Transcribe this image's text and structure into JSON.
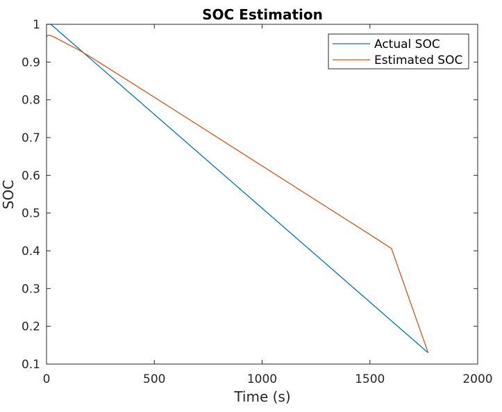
{
  "chart_data": {
    "type": "line",
    "title": "SOC Estimation",
    "xlabel": "Time (s)",
    "ylabel": "SOC",
    "xlim": [
      0,
      2000
    ],
    "ylim": [
      0.1,
      1
    ],
    "xticks": [
      0,
      500,
      1000,
      1500,
      2000
    ],
    "xtick_labels": [
      "0",
      "500",
      "1000",
      "1500",
      "2000"
    ],
    "yticks": [
      0.1,
      0.2,
      0.3,
      0.4,
      0.5,
      0.6,
      0.7,
      0.8,
      0.9,
      1
    ],
    "ytick_labels": [
      "0.1",
      "0.2",
      "0.3",
      "0.4",
      "0.5",
      "0.6",
      "0.7",
      "0.8",
      "0.9",
      "1"
    ],
    "grid": false,
    "legend_position": "top-right",
    "series": [
      {
        "name": "Actual SOC",
        "color": "#0072BD",
        "x": [
          0,
          2,
          20,
          1770
        ],
        "y": [
          1.0,
          1.0,
          1.0,
          0.13
        ]
      },
      {
        "name": "Estimated SOC",
        "color": "#D95319",
        "x": [
          0,
          3,
          10,
          20,
          40,
          70,
          100,
          150,
          200,
          300,
          500,
          1000,
          1500,
          1600,
          1770
        ],
        "y": [
          0.966,
          0.97,
          0.971,
          0.97,
          0.965,
          0.956,
          0.947,
          0.932,
          0.915,
          0.879,
          0.807,
          0.625,
          0.443,
          0.406,
          0.13
        ]
      }
    ]
  }
}
